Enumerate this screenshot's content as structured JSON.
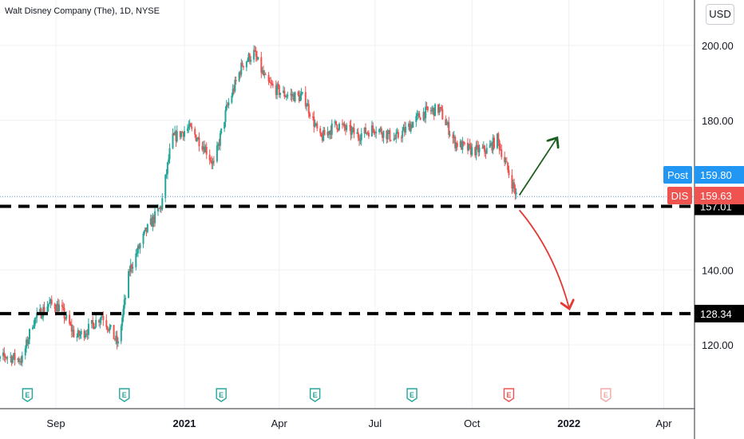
{
  "header": {
    "title": "Walt Disney Company (The), 1D, NYSE",
    "currency": "USD"
  },
  "colors": {
    "up": "#26a69a",
    "down": "#ef5350",
    "post": "#2196f3",
    "ticker": "#ef5350",
    "level": "#000000",
    "arrow_up": "#1b5e20",
    "arrow_down": "#e53935"
  },
  "chart_data": {
    "type": "candlestick",
    "title": "Walt Disney Company (The), 1D, NYSE",
    "y_axis": {
      "ticks": [
        200.0,
        180.0,
        140.0,
        120.0
      ],
      "tick_labels": [
        "200.00",
        "180.00",
        "140.00",
        "120.00"
      ],
      "position": "right"
    },
    "x_axis": {
      "ticks": [
        "Sep",
        "2021",
        "Apr",
        "Jul",
        "Oct",
        "2022",
        "Apr"
      ]
    },
    "price_labels": [
      {
        "name": "Post",
        "value": "159.80"
      },
      {
        "name": "DIS",
        "value": "159.63"
      }
    ],
    "levels": [
      {
        "label": "157.01",
        "value": 157.01
      },
      {
        "label": "128.34",
        "value": 128.34
      }
    ],
    "earnings_markers": [
      {
        "label": "E",
        "date": "2020-08",
        "past": true
      },
      {
        "label": "E",
        "date": "2020-11",
        "past": true
      },
      {
        "label": "E",
        "date": "2021-02",
        "past": true
      },
      {
        "label": "E",
        "date": "2021-05",
        "past": true
      },
      {
        "label": "E",
        "date": "2021-08",
        "past": true
      },
      {
        "label": "E",
        "date": "2021-11",
        "past": false,
        "current": true
      },
      {
        "label": "E",
        "date": "2022-02",
        "past": false
      }
    ],
    "price_path": [
      [
        "2020-07-01",
        114
      ],
      [
        "2020-07-15",
        117
      ],
      [
        "2020-07-31",
        116
      ],
      [
        "2020-08-10",
        126
      ],
      [
        "2020-08-25",
        131
      ],
      [
        "2020-09-05",
        130
      ],
      [
        "2020-09-20",
        122
      ],
      [
        "2020-10-01",
        124
      ],
      [
        "2020-10-15",
        128
      ],
      [
        "2020-10-30",
        120
      ],
      [
        "2020-11-10",
        140
      ],
      [
        "2020-11-25",
        150
      ],
      [
        "2020-12-10",
        157
      ],
      [
        "2020-12-20",
        175
      ],
      [
        "2021-01-05",
        178
      ],
      [
        "2021-01-20",
        173
      ],
      [
        "2021-01-29",
        168
      ],
      [
        "2021-02-10",
        183
      ],
      [
        "2021-02-25",
        195
      ],
      [
        "2021-03-08",
        198
      ],
      [
        "2021-03-20",
        190
      ],
      [
        "2021-04-05",
        187
      ],
      [
        "2021-04-25",
        186
      ],
      [
        "2021-05-10",
        175
      ],
      [
        "2021-05-25",
        179
      ],
      [
        "2021-06-15",
        176
      ],
      [
        "2021-07-01",
        178
      ],
      [
        "2021-07-20",
        175
      ],
      [
        "2021-08-01",
        178
      ],
      [
        "2021-08-15",
        182
      ],
      [
        "2021-08-31",
        183
      ],
      [
        "2021-09-15",
        174
      ],
      [
        "2021-09-30",
        172
      ],
      [
        "2021-10-15",
        172
      ],
      [
        "2021-10-25",
        175
      ],
      [
        "2021-11-12",
        160
      ]
    ],
    "annotations": [
      {
        "type": "arrow",
        "direction": "up",
        "from": [
          "2021-11-15",
          160
        ],
        "to": [
          "2021-12-20",
          175
        ]
      },
      {
        "type": "arrow",
        "direction": "down",
        "from": [
          "2021-11-15",
          156
        ],
        "to": [
          "2022-01-01",
          130
        ]
      }
    ]
  }
}
